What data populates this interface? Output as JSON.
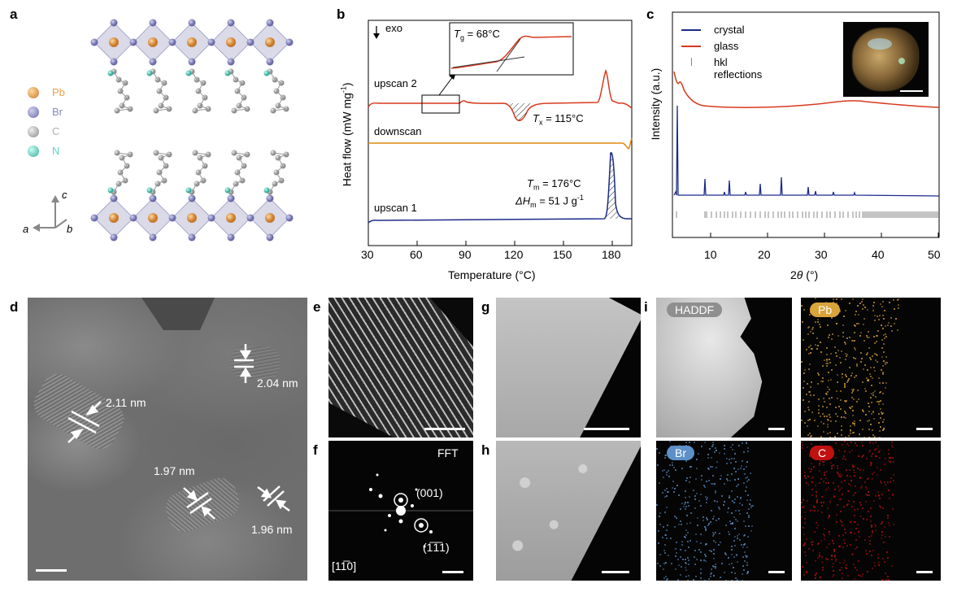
{
  "panels": {
    "a": "a",
    "b": "b",
    "c": "c",
    "d": "d",
    "e": "e",
    "f": "f",
    "g": "g",
    "h": "h",
    "i": "i"
  },
  "panel_a": {
    "legend": [
      {
        "label": "Pb",
        "color": "#e8a04a"
      },
      {
        "label": "Br",
        "color": "#8a8ac8"
      },
      {
        "label": "C",
        "color": "#b0b0b0"
      },
      {
        "label": "N",
        "color": "#5fd0c0"
      }
    ],
    "axes": {
      "c": "c",
      "a": "a",
      "b": "b"
    }
  },
  "panel_b": {
    "exo_label": "exo",
    "labels": {
      "upscan2": "upscan 2",
      "downscan": "downscan",
      "upscan1": "upscan 1",
      "tg": "T",
      "tg_sub": "g",
      "tg_val": " = 68°C",
      "tx": "T",
      "tx_sub": "x",
      "tx_val": " = 115°C",
      "tm": "T",
      "tm_sub": "m",
      "tm_val": " = 176°C",
      "dh": "ΔH",
      "dh_sub": "m",
      "dh_val": " = 51 J g",
      "dh_sup": "-1"
    },
    "xlabel": "Temperature (°C)",
    "ylabel": "Heat flow (mW mg",
    "ylabel_sup": "-1",
    "ylabel_end": ")",
    "xticks": [
      "30",
      "60",
      "90",
      "120",
      "150",
      "180"
    ],
    "colors": {
      "upscan2": "#d83a1e",
      "downscan": "#e08a10",
      "upscan1": "#1c2a8c"
    }
  },
  "panel_c": {
    "legend": [
      {
        "label": "crystal",
        "color": "#1c2a8c"
      },
      {
        "label": "glass",
        "color": "#d83a1e"
      },
      {
        "label": "hkl reflections",
        "color": "#888888"
      }
    ],
    "xlabel_pre": "2",
    "xlabel_theta": "θ",
    "xlabel_post": " (°)",
    "ylabel": "Intensity (a.u.)",
    "xticks": [
      "10",
      "20",
      "30",
      "40",
      "50"
    ]
  },
  "panel_d": {
    "fringes": [
      "2.11 nm",
      "2.04 nm",
      "1.97 nm",
      "1.96 nm"
    ]
  },
  "panel_f": {
    "title": "FFT",
    "spot1": "(001)",
    "spot2": "(1̅1̅1)",
    "zone": "[11̅0]"
  },
  "panel_i": {
    "maps": [
      {
        "label": "HADDF",
        "color": "#8f8f8f"
      },
      {
        "label": "Pb",
        "color": "#d9a43a"
      },
      {
        "label": "Br",
        "color": "#5d90c8"
      },
      {
        "label": "C",
        "color": "#c01010"
      }
    ]
  }
}
